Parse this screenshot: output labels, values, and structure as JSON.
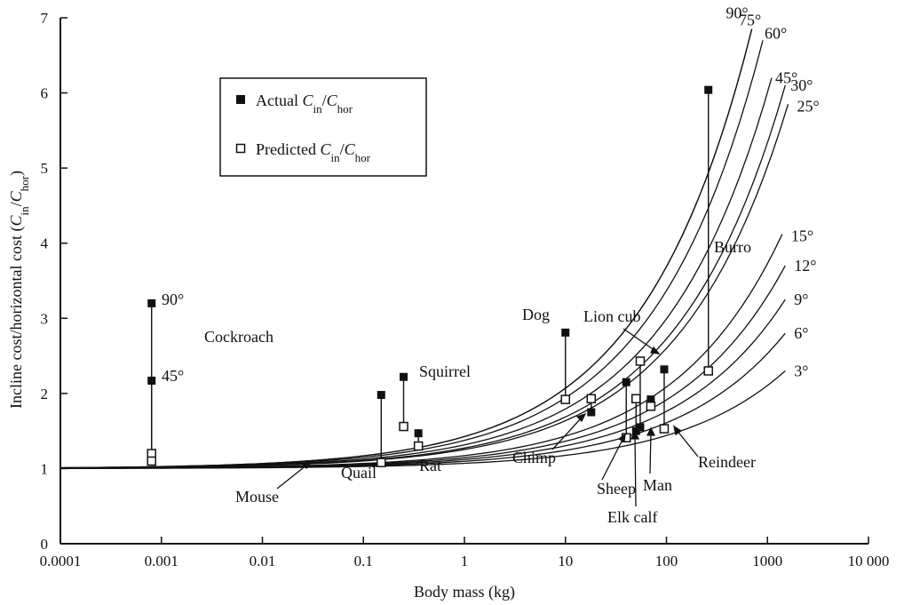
{
  "chart_data": {
    "type": "scatter",
    "xlabel": "Body mass (kg)",
    "ylabel": "Incline cost/horizontal cost (C_in/C_hor)",
    "x_scale": "log",
    "xlim": [
      0.0001,
      10000
    ],
    "ylim": [
      0,
      7
    ],
    "x_tick_labels": [
      "0.0001",
      "0.001",
      "0.01",
      "0.1",
      "1",
      "10",
      "100",
      "1000",
      "10 000"
    ],
    "y_tick_labels": [
      "0",
      "1",
      "2",
      "3",
      "4",
      "5",
      "6",
      "7"
    ],
    "legend": {
      "placement": "top-left",
      "entries": [
        {
          "marker": "filled-square",
          "label": "Actual C_in/C_hor"
        },
        {
          "marker": "open-square",
          "label": "Predicted C_in/C_hor"
        }
      ]
    },
    "series": [
      {
        "name": "Actual C_in/C_hor",
        "marker": "filled",
        "points": [
          {
            "x": 0.0008,
            "y": 3.2
          },
          {
            "x": 0.0008,
            "y": 2.17
          },
          {
            "x": 0.15,
            "y": 1.98
          },
          {
            "x": 0.25,
            "y": 2.22
          },
          {
            "x": 0.35,
            "y": 1.47
          },
          {
            "x": 10,
            "y": 2.81
          },
          {
            "x": 18,
            "y": 1.75
          },
          {
            "x": 40,
            "y": 2.15
          },
          {
            "x": 50,
            "y": 1.5
          },
          {
            "x": 55,
            "y": 1.55
          },
          {
            "x": 70,
            "y": 1.92
          },
          {
            "x": 95,
            "y": 2.32
          },
          {
            "x": 260,
            "y": 6.04
          }
        ]
      },
      {
        "name": "Predicted C_in/C_hor",
        "marker": "open",
        "points": [
          {
            "x": 0.0008,
            "y": 1.2
          },
          {
            "x": 0.0008,
            "y": 1.1
          },
          {
            "x": 0.15,
            "y": 1.08
          },
          {
            "x": 0.25,
            "y": 1.56
          },
          {
            "x": 0.35,
            "y": 1.3
          },
          {
            "x": 10,
            "y": 1.92
          },
          {
            "x": 18,
            "y": 1.93
          },
          {
            "x": 40,
            "y": 1.41
          },
          {
            "x": 50,
            "y": 1.93
          },
          {
            "x": 55,
            "y": 2.43
          },
          {
            "x": 70,
            "y": 1.83
          },
          {
            "x": 95,
            "y": 1.53
          },
          {
            "x": 260,
            "y": 2.3
          }
        ]
      }
    ],
    "incline_curves": [
      {
        "label": "90°",
        "x_end": 700
      },
      {
        "label": "75°",
        "x_end": 700
      },
      {
        "label": "60°",
        "x_end": 900
      },
      {
        "label": "45°",
        "x_end": 1100
      },
      {
        "label": "30°",
        "x_end": 1500
      },
      {
        "label": "25°",
        "x_end": 1600
      },
      {
        "label": "15°",
        "x_end": 1400
      },
      {
        "label": "12°",
        "x_end": 1500
      },
      {
        "label": "9°",
        "x_end": 1500
      },
      {
        "label": "6°",
        "x_end": 1500
      },
      {
        "label": "3°",
        "x_end": 1500
      }
    ],
    "annotations": {
      "cockroach": "Cockroach",
      "cockroach_90": "90°",
      "cockroach_45": "45°",
      "squirrel": "Squirrel",
      "dog": "Dog",
      "lion_cub": "Lion cub",
      "burro": "Burro",
      "quail": "Quail",
      "rat": "Rat",
      "mouse": "Mouse",
      "chimp": "Chimp",
      "sheep": "Sheep",
      "man": "Man",
      "reindeer": "Reindeer",
      "elk_calf": "Elk calf"
    }
  }
}
